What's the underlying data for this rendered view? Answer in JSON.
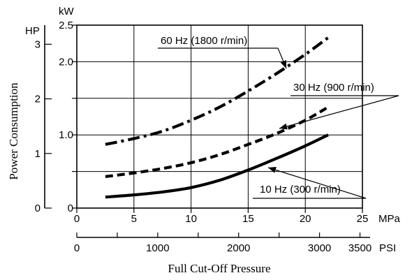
{
  "chart_data": {
    "type": "line",
    "ylabel": "Power Consumption",
    "xlabel": "Full Cut-Off Pressure",
    "kw_axis": {
      "unit": "kW",
      "range": [
        0,
        2.5
      ],
      "ticks": [
        0,
        0.5,
        1.0,
        1.5,
        2.0,
        2.5
      ],
      "tick_labels": [
        {
          "value": 0,
          "text": "0"
        },
        {
          "value": 1.0,
          "text": "1.0"
        },
        {
          "value": 2.0,
          "text": "2.0"
        },
        {
          "value": 2.5,
          "text": "2.5"
        }
      ]
    },
    "hp_axis": {
      "unit": "HP",
      "range": [
        0,
        3.35
      ],
      "ticks": [
        0,
        1,
        2,
        3
      ],
      "tick_labels": [
        "0",
        "1",
        "2",
        "3"
      ]
    },
    "mpa_axis": {
      "unit": "MPa",
      "range": [
        0,
        25
      ],
      "ticks": [
        0,
        5,
        10,
        15,
        20,
        25
      ],
      "tick_labels": [
        "0",
        "5",
        "10",
        "15",
        "20",
        "25"
      ]
    },
    "psi_axis": {
      "unit": "PSI",
      "range": [
        0,
        3625
      ],
      "ticks": [
        0,
        500,
        1000,
        1500,
        2000,
        2500,
        3000,
        3500
      ],
      "tick_labels": [
        {
          "value": 0,
          "text": "0"
        },
        {
          "value": 1000,
          "text": "1000"
        },
        {
          "value": 2000,
          "text": "2000"
        },
        {
          "value": 3000,
          "text": "3000"
        },
        {
          "value": 3500,
          "text": "3500"
        }
      ]
    },
    "grid": true,
    "series": [
      {
        "name": "60 Hz (1800 r/min)",
        "style": "dashdot",
        "x": [
          2.5,
          5,
          7.5,
          10,
          12.5,
          15,
          17.5,
          20,
          22
        ],
        "y": [
          0.87,
          0.95,
          1.05,
          1.2,
          1.38,
          1.6,
          1.84,
          2.1,
          2.33
        ]
      },
      {
        "name": "30 Hz (900 r/min)",
        "style": "dashed",
        "x": [
          2.5,
          5,
          7.5,
          10,
          12.5,
          15,
          17.5,
          20,
          22
        ],
        "y": [
          0.43,
          0.48,
          0.54,
          0.62,
          0.73,
          0.87,
          1.02,
          1.2,
          1.38
        ]
      },
      {
        "name": "10 Hz (300 r/min)",
        "style": "solid",
        "x": [
          2.5,
          5,
          7.5,
          10,
          12.5,
          15,
          17.5,
          20,
          22
        ],
        "y": [
          0.15,
          0.18,
          0.22,
          0.28,
          0.38,
          0.52,
          0.68,
          0.85,
          1.0
        ]
      }
    ]
  }
}
